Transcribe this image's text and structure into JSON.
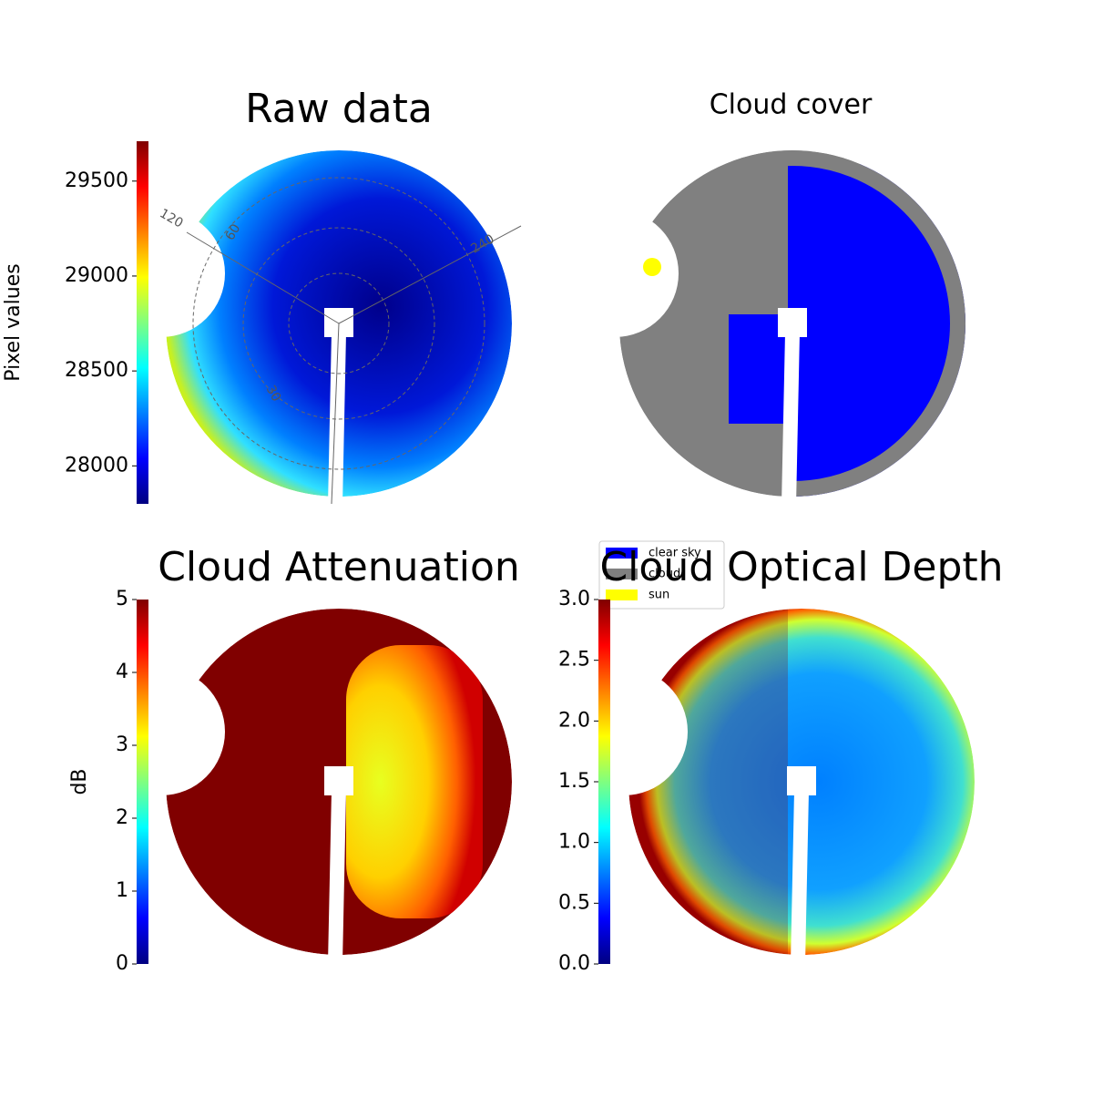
{
  "chart_data": [
    {
      "type": "image",
      "title": "Raw data",
      "colormap": "jet",
      "colorbar_label": "Pixel values",
      "ylim": [
        27800,
        29710
      ],
      "yticks": [
        28000,
        28500,
        29000,
        29500
      ],
      "polar_labels": [
        "120",
        "60",
        "240",
        "30"
      ]
    },
    {
      "type": "image",
      "title": "Cloud cover",
      "series": [
        {
          "name": "clear sky",
          "color": "#0000ff"
        },
        {
          "name": "cloud",
          "color": "#808080"
        },
        {
          "name": "sun",
          "color": "#ffff00"
        }
      ]
    },
    {
      "type": "image",
      "title": "Cloud Attenuation",
      "colormap": "jet",
      "colorbar_label": "dB",
      "ylim": [
        0,
        5
      ],
      "yticks": [
        0,
        1,
        2,
        3,
        4,
        5
      ]
    },
    {
      "type": "image",
      "title": "Cloud Optical Depth",
      "colormap": "jet",
      "ylim": [
        0,
        3
      ],
      "yticks": [
        {
          "value": 0,
          "label": "0.0"
        },
        {
          "value": 0.5,
          "label": "0.5"
        },
        {
          "value": 1,
          "label": "1.0"
        },
        {
          "value": 1.5,
          "label": "1.5"
        },
        {
          "value": 2,
          "label": "2.0"
        },
        {
          "value": 2.5,
          "label": "2.5"
        },
        {
          "value": 3,
          "label": "3.0"
        }
      ]
    }
  ]
}
